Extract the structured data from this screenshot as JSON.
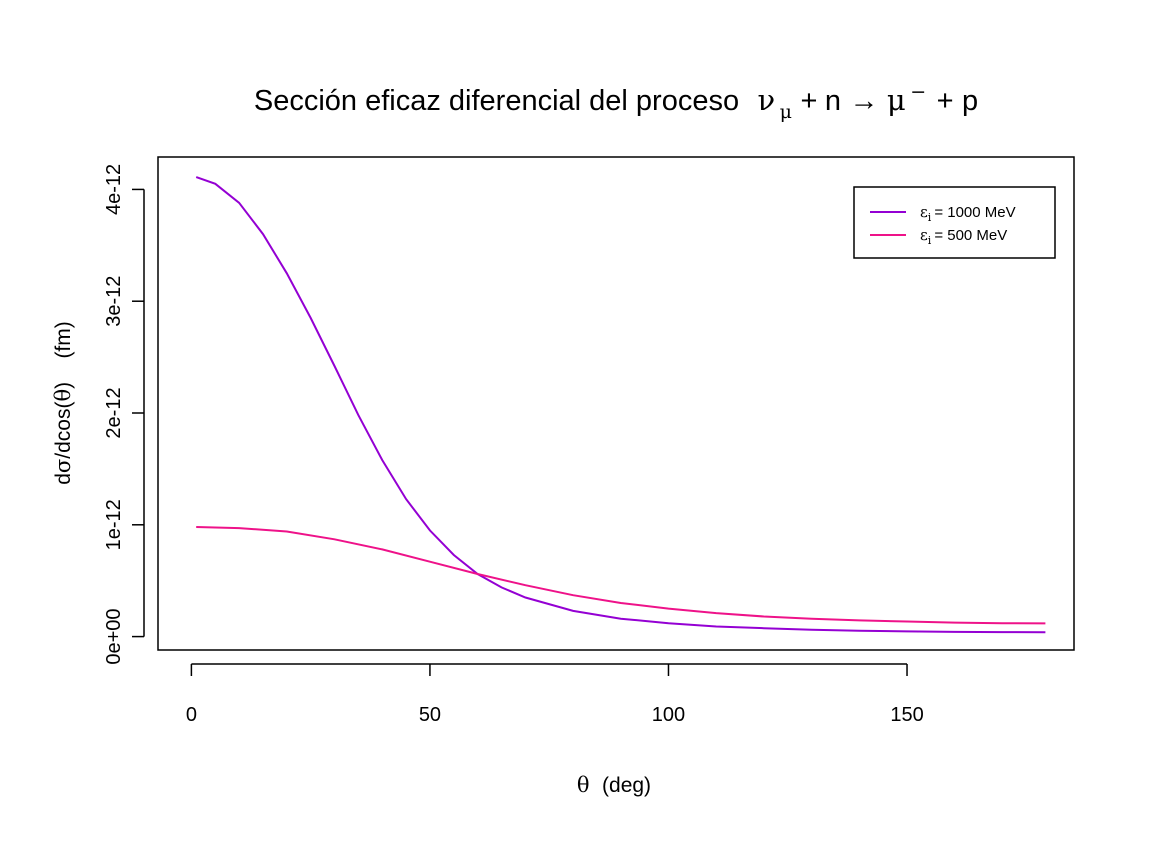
{
  "chart_data": {
    "type": "line",
    "title": {
      "text": "Sección  eficaz  diferencial  del  proceso",
      "nu": "ν",
      "nu_sub": "μ",
      "plus1": "+",
      "n": "n",
      "arrow": "→",
      "mu": "μ",
      "mu_sup": "−",
      "plus2": "+",
      "p": "p"
    },
    "xlabel": {
      "theta": "θ",
      "text": "(deg)"
    },
    "ylabel": {
      "prefix": "d",
      "sigma": "σ",
      "middle": "/dcos(",
      "theta": "θ",
      "suffix": ")    (fm)"
    },
    "xlim": [
      -7,
      185
    ],
    "ylim": [
      -0.12,
      4.29
    ],
    "y_unit_note": "values in units of 1e-12",
    "x_ticks": [
      {
        "value": 0,
        "label": "0"
      },
      {
        "value": 50,
        "label": "50"
      },
      {
        "value": 100,
        "label": "100"
      },
      {
        "value": 150,
        "label": "150"
      }
    ],
    "y_ticks": [
      {
        "value": 0,
        "label": "0e+00"
      },
      {
        "value": 1,
        "label": "1e-12"
      },
      {
        "value": 2,
        "label": "2e-12"
      },
      {
        "value": 3,
        "label": "3e-12"
      },
      {
        "value": 4,
        "label": "4e-12"
      }
    ],
    "legend": {
      "position": "top-right",
      "entries": [
        {
          "symbol": "ε",
          "sub": "i",
          "text": "= 1000  MeV"
        },
        {
          "symbol": "ε",
          "sub": "i",
          "text": "= 500  MeV"
        }
      ]
    },
    "series": [
      {
        "color": "#9400D3",
        "x": [
          1,
          5,
          10,
          15,
          20,
          25,
          30,
          35,
          40,
          45,
          50,
          55,
          60,
          65,
          70,
          80,
          90,
          100,
          110,
          120,
          130,
          140,
          150,
          160,
          170,
          179
        ],
        "y": [
          4.11,
          4.05,
          3.88,
          3.6,
          3.25,
          2.85,
          2.42,
          1.98,
          1.58,
          1.23,
          0.95,
          0.73,
          0.56,
          0.44,
          0.35,
          0.23,
          0.16,
          0.12,
          0.09,
          0.075,
          0.062,
          0.052,
          0.046,
          0.042,
          0.04,
          0.038
        ]
      },
      {
        "color": "#EE1289",
        "x": [
          1,
          10,
          20,
          30,
          40,
          50,
          60,
          70,
          80,
          90,
          100,
          110,
          120,
          130,
          140,
          150,
          160,
          170,
          179
        ],
        "y": [
          0.98,
          0.97,
          0.94,
          0.87,
          0.78,
          0.67,
          0.56,
          0.46,
          0.37,
          0.3,
          0.25,
          0.21,
          0.18,
          0.16,
          0.145,
          0.135,
          0.125,
          0.12,
          0.118
        ]
      }
    ]
  }
}
